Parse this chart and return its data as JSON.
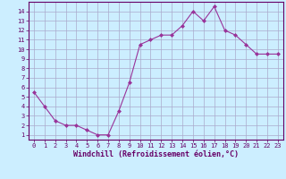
{
  "x": [
    0,
    1,
    2,
    3,
    4,
    5,
    6,
    7,
    8,
    9,
    10,
    11,
    12,
    13,
    14,
    15,
    16,
    17,
    18,
    19,
    20,
    21,
    22,
    23
  ],
  "y": [
    5.5,
    4.0,
    2.5,
    2.0,
    2.0,
    1.5,
    1.0,
    1.0,
    3.5,
    6.5,
    10.5,
    11.0,
    11.5,
    11.5,
    12.5,
    14.0,
    13.0,
    14.5,
    12.0,
    11.5,
    10.5,
    9.5,
    9.5,
    9.5
  ],
  "line_color": "#993399",
  "marker": "D",
  "markersize": 2.0,
  "linewidth": 0.8,
  "xlabel": "Windchill (Refroidissement éolien,°C)",
  "xlabel_fontsize": 6.0,
  "ylabel_ticks": [
    1,
    2,
    3,
    4,
    5,
    6,
    7,
    8,
    9,
    10,
    11,
    12,
    13,
    14
  ],
  "xticks": [
    0,
    1,
    2,
    3,
    4,
    5,
    6,
    7,
    8,
    9,
    10,
    11,
    12,
    13,
    14,
    15,
    16,
    17,
    18,
    19,
    20,
    21,
    22,
    23
  ],
  "ylim": [
    0.5,
    15.0
  ],
  "xlim": [
    -0.5,
    23.5
  ],
  "bg_color": "#cceeff",
  "plot_bg_color": "#cceeff",
  "grid_color": "#aaaacc",
  "label_color": "#660066",
  "tick_fontsize": 5.0,
  "spine_color": "#660066",
  "bottom_bar_color": "#993399"
}
